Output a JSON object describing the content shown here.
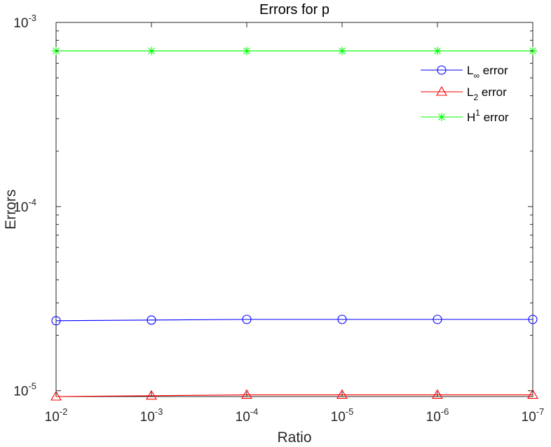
{
  "chart_data": {
    "type": "line",
    "title": "Errors for p",
    "xlabel": "Ratio",
    "ylabel": "Errors",
    "x_scale": "log",
    "y_scale": "log",
    "x_reversed": true,
    "x": [
      0.01,
      0.001,
      0.0001,
      1e-05,
      1e-06,
      1e-07
    ],
    "x_tick_labels": [
      {
        "base": "10",
        "exp": "-2"
      },
      {
        "base": "10",
        "exp": "-3"
      },
      {
        "base": "10",
        "exp": "-4"
      },
      {
        "base": "10",
        "exp": "-5"
      },
      {
        "base": "10",
        "exp": "-6"
      },
      {
        "base": "10",
        "exp": "-7"
      }
    ],
    "y_tick_labels": [
      {
        "base": "10",
        "exp": "-3",
        "value": 0.001
      },
      {
        "base": "10",
        "exp": "-4",
        "value": 0.0001
      },
      {
        "base": "10",
        "exp": "-5",
        "value": 1e-05
      }
    ],
    "ylim": [
      9.3e-06,
      0.001
    ],
    "grid": false,
    "legend_position": "top-right",
    "series": [
      {
        "name": "L∞ error",
        "name_main": "L",
        "name_sub": "∞",
        "name_sup": "",
        "name_rest": " error",
        "color": "#0000ff",
        "marker": "circle",
        "values": [
          2.4e-05,
          2.42e-05,
          2.44e-05,
          2.44e-05,
          2.44e-05,
          2.44e-05
        ]
      },
      {
        "name": "L2 error",
        "name_main": "L",
        "name_sub": "2",
        "name_sup": "",
        "name_rest": " error",
        "color": "#ff0000",
        "marker": "triangle",
        "values": [
          9.3e-06,
          9.4e-06,
          9.5e-06,
          9.5e-06,
          9.5e-06,
          9.5e-06
        ]
      },
      {
        "name": "H1 error",
        "name_main": "H",
        "name_sub": "",
        "name_sup": "1",
        "name_rest": " error",
        "color": "#00ff00",
        "marker": "star",
        "values": [
          0.0007,
          0.0007,
          0.0007,
          0.0007,
          0.0007,
          0.0007
        ]
      }
    ]
  }
}
